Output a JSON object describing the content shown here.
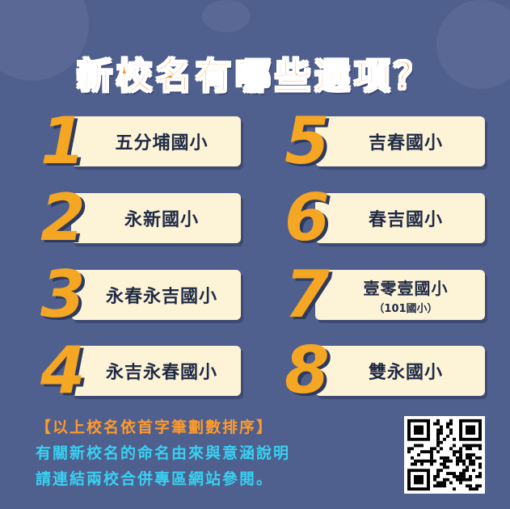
{
  "title": "新校名有哪些選項？",
  "options": [
    {
      "number": "1",
      "name": "五分埔國小",
      "sub": ""
    },
    {
      "number": "2",
      "name": "永新國小",
      "sub": ""
    },
    {
      "number": "3",
      "name": "永春永吉國小",
      "sub": ""
    },
    {
      "number": "4",
      "name": "永吉永春國小",
      "sub": ""
    },
    {
      "number": "5",
      "name": "吉春國小",
      "sub": ""
    },
    {
      "number": "6",
      "name": "春吉國小",
      "sub": ""
    },
    {
      "number": "7",
      "name": "壹零壹國小",
      "sub": "（101國小）"
    },
    {
      "number": "8",
      "name": "雙永國小",
      "sub": ""
    }
  ],
  "notes": {
    "sort_note": "【以上校名依首字筆劃數排序】",
    "line1": "有關新校名的命名由來與意涵說明",
    "line2": "請連結兩校合併專區網站參閱。"
  },
  "colors": {
    "background": "#4f5f8e",
    "title": "#ff8a1f",
    "number": "#f5a623",
    "card": "#fdf3d7",
    "note_orange": "#ff9a2a",
    "note_cyan": "#39d0f0"
  },
  "icons": {
    "qr": "qr-code-icon"
  }
}
